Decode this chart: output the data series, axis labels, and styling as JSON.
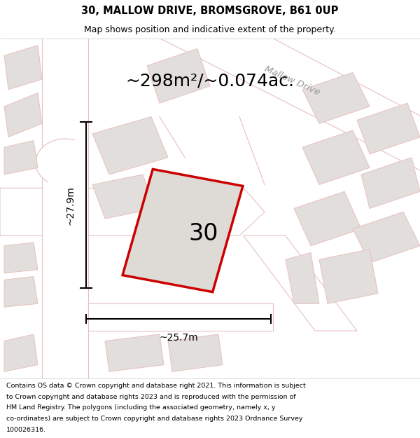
{
  "title_line1": "30, MALLOW DRIVE, BROMSGROVE, B61 0UP",
  "title_line2": "Map shows position and indicative extent of the property.",
  "area_text": "~298m²/~0.074ac.",
  "width_label": "~25.7m",
  "height_label": "~27.9m",
  "plot_number": "30",
  "footer_lines": [
    "Contains OS data © Crown copyright and database right 2021. This information is subject",
    "to Crown copyright and database rights 2023 and is reproduced with the permission of",
    "HM Land Registry. The polygons (including the associated geometry, namely x, y",
    "co-ordinates) are subject to Crown copyright and database rights 2023 Ordnance Survey",
    "100026316."
  ],
  "map_bg": "#f0eeeb",
  "road_fill": "#ffffff",
  "road_stroke": "#e8c0c0",
  "bg_fill": "#e2dedb",
  "plot_fill": "#dedad6",
  "plot_stroke": "#cc0000",
  "title_bg": "#ffffff",
  "footer_bg": "#ffffff"
}
